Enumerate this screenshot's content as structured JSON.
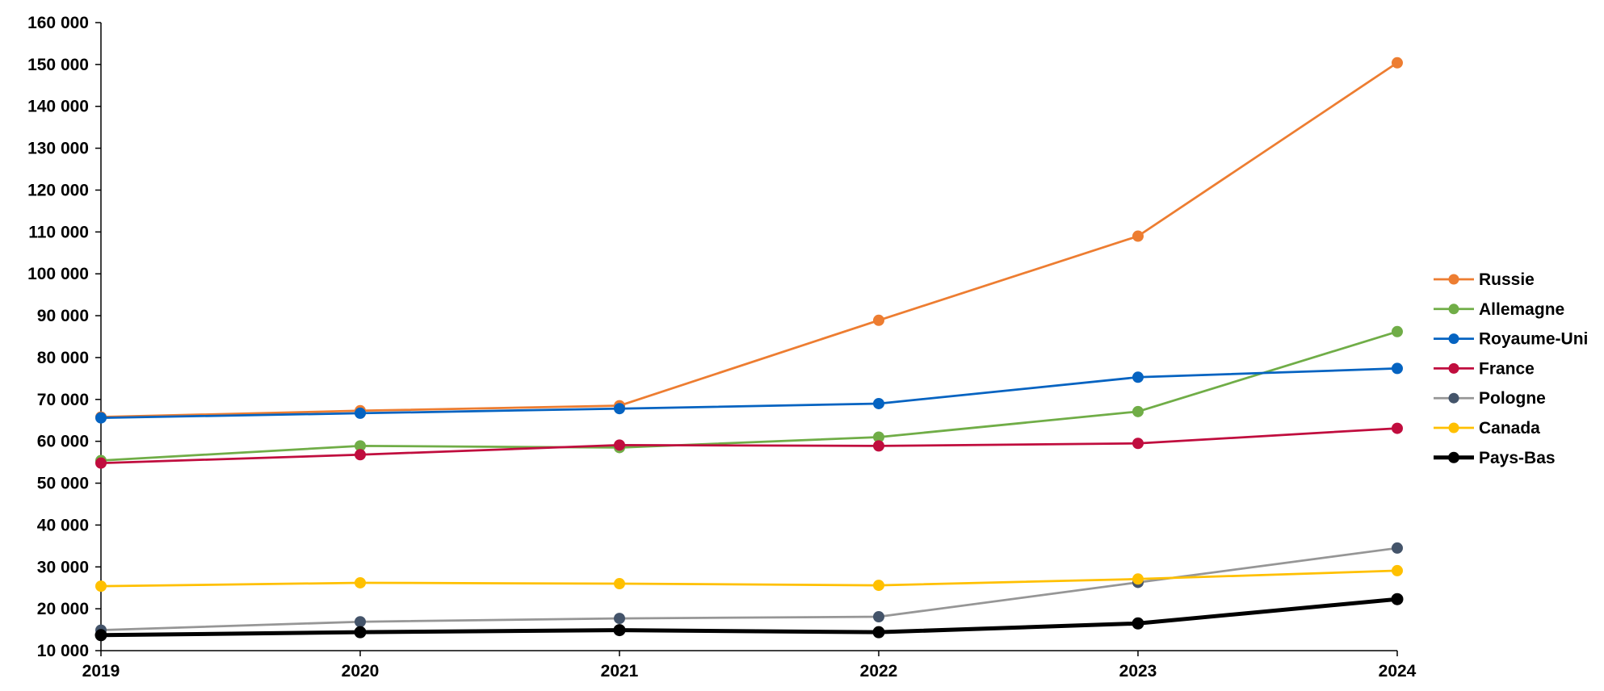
{
  "chart_data": {
    "type": "line",
    "title": "",
    "xlabel": "",
    "ylabel": "",
    "x": [
      "2019",
      "2020",
      "2021",
      "2022",
      "2023",
      "2024"
    ],
    "ylim": [
      10000,
      160000
    ],
    "yticks": [
      10000,
      20000,
      30000,
      40000,
      50000,
      60000,
      70000,
      80000,
      90000,
      100000,
      110000,
      120000,
      130000,
      140000,
      150000,
      160000
    ],
    "ytick_labels": [
      "10 000",
      "20 000",
      "30 000",
      "40 000",
      "50 000",
      "60 000",
      "70 000",
      "80 000",
      "90 000",
      "100 000",
      "110 000",
      "120 000",
      "130 000",
      "140 000",
      "150 000",
      "160 000"
    ],
    "grid": false,
    "legend_position": "right",
    "series": [
      {
        "name": "Russie",
        "line_color": "#ED7D31",
        "marker_color": "#ED7D31",
        "bold": false,
        "values": [
          65800,
          67300,
          68500,
          88900,
          109000,
          150400
        ]
      },
      {
        "name": "Allemagne",
        "line_color": "#70AD47",
        "marker_color": "#70AD47",
        "bold": false,
        "values": [
          55400,
          58900,
          58500,
          61000,
          67100,
          86200
        ]
      },
      {
        "name": "Royaume-Uni",
        "line_color": "#0563C1",
        "marker_color": "#0563C1",
        "bold": false,
        "values": [
          65600,
          66700,
          67800,
          69000,
          75300,
          77400
        ]
      },
      {
        "name": "France",
        "line_color": "#C00D3E",
        "marker_color": "#C00D3E",
        "bold": false,
        "values": [
          54800,
          56800,
          59100,
          58900,
          59500,
          63100
        ]
      },
      {
        "name": "Pologne",
        "line_color": "#969696",
        "marker_color": "#44546A",
        "bold": false,
        "values": [
          14900,
          16900,
          17700,
          18100,
          26300,
          34500
        ]
      },
      {
        "name": "Canada",
        "line_color": "#FFC000",
        "marker_color": "#FFC000",
        "bold": false,
        "values": [
          25400,
          26200,
          26000,
          25600,
          27100,
          29100
        ]
      },
      {
        "name": "Pays-Bas",
        "line_color": "#000000",
        "marker_color": "#000000",
        "bold": true,
        "values": [
          13700,
          14400,
          14900,
          14400,
          16500,
          22300
        ]
      }
    ]
  }
}
